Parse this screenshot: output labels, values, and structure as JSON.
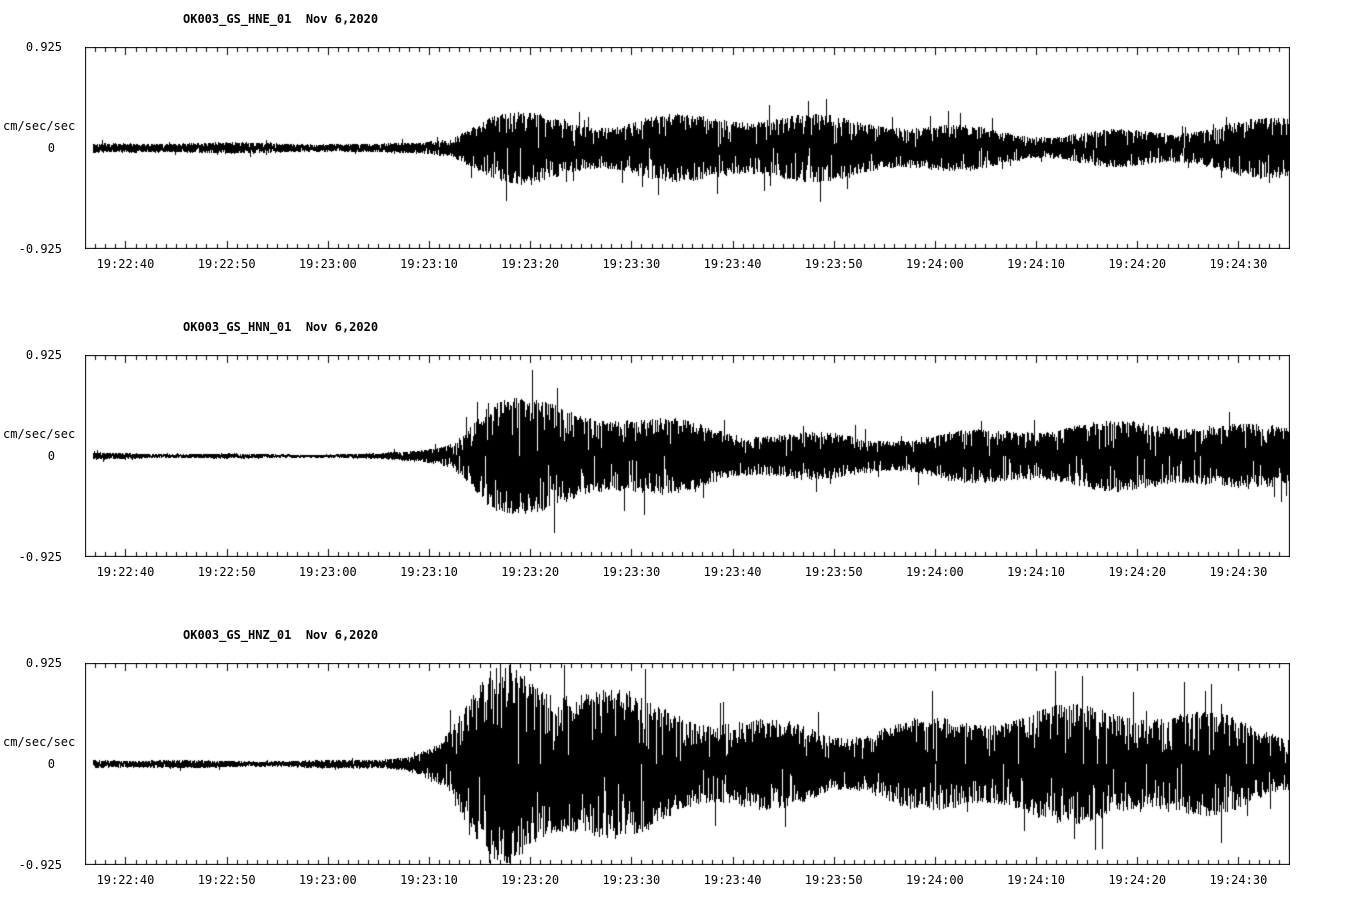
{
  "page_background": "#ffffff",
  "trace_color": "#000000",
  "panels": [
    {
      "title": "OK003_GS_HNE_01  Nov 6,2020",
      "y_max": "0.925",
      "y_units": "cm/sec/sec",
      "y_zero": "0",
      "y_min": "-0.925"
    },
    {
      "title": "OK003_GS_HNN_01  Nov 6,2020",
      "y_max": "0.925",
      "y_units": "cm/sec/sec",
      "y_zero": "0",
      "y_min": "-0.925"
    },
    {
      "title": "OK003_GS_HNZ_01  Nov 6,2020",
      "y_max": "0.925",
      "y_units": "cm/sec/sec",
      "y_zero": "0",
      "y_min": "-0.925"
    }
  ],
  "time_axis": {
    "start": "19:22:36",
    "end": "19:24:35",
    "duration_seconds": 119,
    "tick_interval_seconds": 10,
    "first_tick_offset_seconds": 4,
    "minor_tick_interval_seconds": 1,
    "labels": [
      "19:22:40",
      "19:22:50",
      "19:23:00",
      "19:23:10",
      "19:23:20",
      "19:23:30",
      "19:23:40",
      "19:23:50",
      "19:24:00",
      "19:24:10",
      "19:24:20",
      "19:24:30"
    ]
  },
  "chart_data": [
    {
      "type": "line",
      "subtype": "seismogram",
      "title": "OK003_GS_HNE_01  Nov 6,2020",
      "station_channel": "OK003_GS_HNE_01",
      "date": "Nov 6,2020",
      "ylabel": "cm/sec/sec",
      "ylim": [
        -0.925,
        0.925
      ],
      "y_tick_labels": [
        "0.925",
        "0",
        "-0.925"
      ],
      "x_start": "19:22:36",
      "x_end": "19:24:35",
      "x_duration_seconds": 119,
      "x_tick_labels": [
        "19:22:40",
        "19:22:50",
        "19:23:00",
        "19:23:10",
        "19:23:20",
        "19:23:30",
        "19:23:40",
        "19:23:50",
        "19:24:00",
        "19:24:10",
        "19:24:20",
        "19:24:30"
      ],
      "envelope_note": "dense seismic waveform; [seconds from 19:22:36, peak amplitude as fraction of 0.925 cm/sec/sec]",
      "envelope_points": [
        [
          0,
          0.05
        ],
        [
          29,
          0.05
        ],
        [
          33,
          0.09
        ],
        [
          36,
          0.2
        ],
        [
          38,
          0.45
        ],
        [
          40,
          0.6
        ],
        [
          43,
          0.57
        ],
        [
          48,
          0.48
        ],
        [
          54,
          0.4
        ],
        [
          64,
          0.35
        ],
        [
          80,
          0.32
        ],
        [
          100,
          0.31
        ],
        [
          119,
          0.33
        ]
      ],
      "seed": 1
    },
    {
      "type": "line",
      "subtype": "seismogram",
      "title": "OK003_GS_HNN_01  Nov 6,2020",
      "station_channel": "OK003_GS_HNN_01",
      "date": "Nov 6,2020",
      "ylabel": "cm/sec/sec",
      "ylim": [
        -0.925,
        0.925
      ],
      "y_tick_labels": [
        "0.925",
        "0",
        "-0.925"
      ],
      "x_start": "19:22:36",
      "x_end": "19:24:35",
      "x_duration_seconds": 119,
      "x_tick_labels": [
        "19:22:40",
        "19:22:50",
        "19:23:00",
        "19:23:10",
        "19:23:20",
        "19:23:30",
        "19:23:40",
        "19:23:50",
        "19:24:00",
        "19:24:10",
        "19:24:20",
        "19:24:30"
      ],
      "envelope_note": "dense seismic waveform; [seconds from 19:22:36, peak amplitude as fraction of 0.925 cm/sec/sec]",
      "envelope_points": [
        [
          0,
          0.04
        ],
        [
          29,
          0.04
        ],
        [
          33,
          0.08
        ],
        [
          36,
          0.18
        ],
        [
          38,
          0.42
        ],
        [
          40,
          0.62
        ],
        [
          44,
          0.55
        ],
        [
          48,
          0.47
        ],
        [
          54,
          0.4
        ],
        [
          64,
          0.34
        ],
        [
          80,
          0.31
        ],
        [
          100,
          0.3
        ],
        [
          119,
          0.3
        ]
      ],
      "seed": 2
    },
    {
      "type": "line",
      "subtype": "seismogram",
      "title": "OK003_GS_HNZ_01  Nov 6,2020",
      "station_channel": "OK003_GS_HNZ_01",
      "date": "Nov 6,2020",
      "ylabel": "cm/sec/sec",
      "ylim": [
        -0.925,
        0.925
      ],
      "y_tick_labels": [
        "0.925",
        "0",
        "-0.925"
      ],
      "x_start": "19:22:36",
      "x_end": "19:24:35",
      "x_duration_seconds": 119,
      "x_tick_labels": [
        "19:22:40",
        "19:22:50",
        "19:23:00",
        "19:23:10",
        "19:23:20",
        "19:23:30",
        "19:23:40",
        "19:23:50",
        "19:24:00",
        "19:24:10",
        "19:24:20",
        "19:24:30"
      ],
      "envelope_note": "dense seismic waveform; [seconds from 19:22:36, peak amplitude as fraction of 0.925 cm/sec/sec]",
      "envelope_points": [
        [
          0,
          0.05
        ],
        [
          29,
          0.05
        ],
        [
          32,
          0.1
        ],
        [
          35,
          0.22
        ],
        [
          37,
          0.45
        ],
        [
          40,
          0.8
        ],
        [
          42,
          0.9
        ],
        [
          46,
          0.75
        ],
        [
          52,
          0.68
        ],
        [
          60,
          0.62
        ],
        [
          75,
          0.58
        ],
        [
          95,
          0.56
        ],
        [
          119,
          0.55
        ]
      ],
      "seed": 3
    }
  ]
}
